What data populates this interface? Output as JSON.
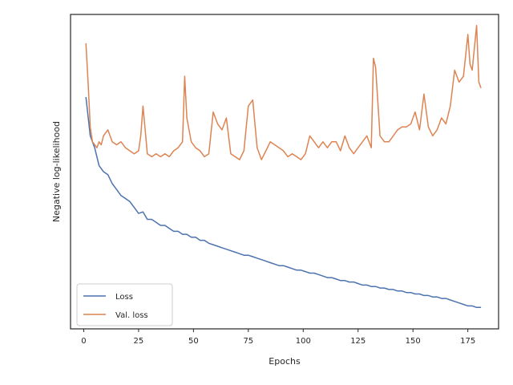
{
  "chart_data": {
    "type": "line",
    "title": "",
    "xlabel": "Epochs",
    "ylabel": "Negative log-likelihood",
    "xlim": [
      -6,
      189
    ],
    "ylim": [
      0,
      100
    ],
    "y_ticks_shown": false,
    "x_ticks": [
      0,
      25,
      50,
      75,
      100,
      125,
      150,
      175
    ],
    "x_tick_labels": [
      "0",
      "25",
      "50",
      "75",
      "100",
      "125",
      "150",
      "175"
    ],
    "grid": false,
    "legend": {
      "position": "lower-left",
      "entries": [
        "Loss",
        "Val. loss"
      ]
    },
    "series": [
      {
        "name": "Loss",
        "color": "#4c72b0",
        "x": [
          1,
          3,
          5,
          7,
          9,
          11,
          13,
          15,
          17,
          19,
          21,
          23,
          25,
          27,
          29,
          31,
          33,
          35,
          37,
          39,
          41,
          43,
          45,
          47,
          49,
          51,
          53,
          55,
          57,
          59,
          61,
          63,
          65,
          67,
          69,
          71,
          73,
          75,
          77,
          79,
          81,
          83,
          85,
          87,
          89,
          91,
          93,
          95,
          97,
          99,
          101,
          103,
          105,
          107,
          109,
          111,
          113,
          115,
          117,
          119,
          121,
          123,
          125,
          127,
          129,
          131,
          133,
          135,
          137,
          139,
          141,
          143,
          145,
          147,
          149,
          151,
          153,
          155,
          157,
          159,
          161,
          163,
          165,
          167,
          169,
          171,
          173,
          175,
          177,
          179,
          181
        ],
        "values": [
          75,
          62,
          58,
          52,
          50,
          49,
          46,
          44,
          42,
          41,
          40,
          38,
          36,
          36.5,
          34,
          34,
          33,
          32,
          32,
          31,
          30,
          30,
          29,
          29,
          28,
          28,
          27,
          27,
          26,
          25.5,
          25,
          24.5,
          24,
          23.5,
          23,
          22.5,
          22,
          22,
          21.5,
          21,
          20.5,
          20,
          19.5,
          19,
          18.5,
          18.5,
          18,
          17.5,
          17,
          17,
          16.5,
          16,
          16,
          15.5,
          15,
          14.5,
          14.5,
          14,
          13.5,
          13.5,
          13,
          13,
          12.5,
          12,
          12,
          11.5,
          11.5,
          11,
          11,
          10.5,
          10.5,
          10,
          10,
          9.5,
          9.5,
          9,
          9,
          8.5,
          8.5,
          8,
          8,
          7.5,
          7.5,
          7,
          6.5,
          6,
          5.5,
          5,
          5,
          4.5,
          4.5
        ]
      },
      {
        "name": "Val. loss",
        "color": "#dd8452",
        "x": [
          1,
          2,
          3,
          4,
          5,
          6,
          7,
          8,
          9,
          10,
          11,
          13,
          15,
          17,
          19,
          21,
          23,
          25,
          26,
          27,
          29,
          31,
          33,
          35,
          37,
          39,
          41,
          43,
          45,
          46,
          47,
          49,
          51,
          53,
          55,
          57,
          59,
          61,
          63,
          65,
          67,
          69,
          71,
          73,
          75,
          77,
          79,
          81,
          83,
          85,
          87,
          89,
          91,
          93,
          95,
          97,
          99,
          101,
          103,
          105,
          107,
          109,
          111,
          113,
          115,
          117,
          119,
          121,
          123,
          125,
          127,
          129,
          131,
          132,
          133,
          135,
          137,
          139,
          141,
          143,
          145,
          147,
          149,
          151,
          153,
          155,
          157,
          159,
          161,
          163,
          165,
          167,
          169,
          171,
          173,
          175,
          176,
          177,
          179,
          180,
          181
        ],
        "values": [
          93,
          80,
          65,
          60,
          59,
          58,
          60,
          59,
          62,
          63,
          64,
          60,
          59,
          60,
          58,
          57,
          56,
          57,
          62,
          72,
          56,
          55,
          56,
          55,
          56,
          55,
          57,
          58,
          60,
          82,
          68,
          60,
          58,
          57,
          55,
          56,
          70,
          66,
          64,
          68,
          56,
          55,
          54,
          57,
          72,
          74,
          58,
          54,
          57,
          60,
          59,
          58,
          57,
          55,
          56,
          55,
          54,
          56,
          62,
          60,
          58,
          60,
          58,
          60,
          60,
          57,
          62,
          58,
          56,
          58,
          60,
          62,
          58,
          88,
          85,
          62,
          60,
          60,
          62,
          64,
          65,
          65,
          66,
          70,
          64,
          76,
          65,
          62,
          64,
          68,
          66,
          72,
          84,
          80,
          82,
          96,
          86,
          84,
          99,
          80,
          78
        ]
      }
    ]
  }
}
